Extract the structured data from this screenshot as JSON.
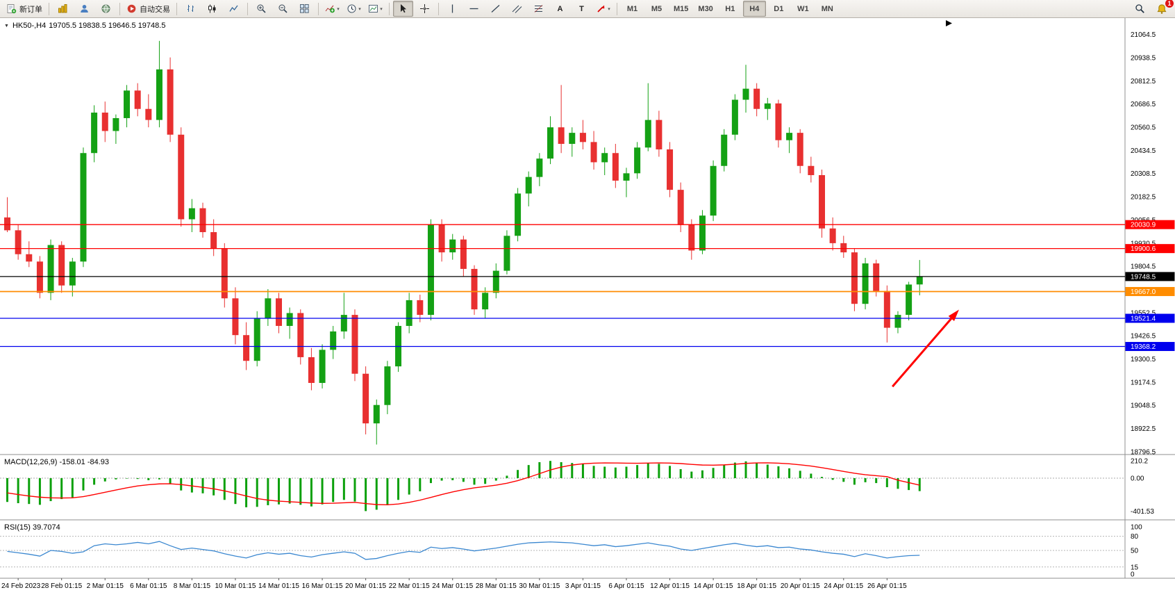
{
  "toolbar": {
    "new_order_label": "新订单",
    "auto_trading_label": "自动交易",
    "text_tool": "A",
    "textlabel_tool": "T",
    "timeframes": [
      "M1",
      "M5",
      "M15",
      "M30",
      "H1",
      "H4",
      "D1",
      "W1",
      "MN"
    ],
    "active_timeframe": "H4",
    "notification_count": "1"
  },
  "chart": {
    "symbol_period": "HK50-,H4",
    "ohlc_text": "19705.5 19838.5 19646.5 19748.5"
  },
  "chart_data": {
    "type": "candlestick",
    "symbol": "HK50-",
    "timeframe": "H4",
    "ohlc_current": {
      "open": 19705.5,
      "high": 19838.5,
      "low": 19646.5,
      "close": 19748.5
    },
    "colors": {
      "up": "#14a114",
      "down": "#e83030",
      "background": "#ffffff"
    },
    "price_axis_labels": [
      "21064.5",
      "20938.5",
      "20812.5",
      "20686.5",
      "20560.5",
      "20434.5",
      "20308.5",
      "20182.5",
      "20056.5",
      "19930.5",
      "19804.5",
      "19678.5",
      "19552.5",
      "19426.5",
      "19300.5",
      "19174.5",
      "19048.5",
      "18922.5",
      "18796.5"
    ],
    "time_axis_labels": [
      "24 Feb 2023",
      "28 Feb 01:15",
      "2 Mar 01:15",
      "6 Mar 01:15",
      "8 Mar 01:15",
      "10 Mar 01:15",
      "14 Mar 01:15",
      "16 Mar 01:15",
      "20 Mar 01:15",
      "22 Mar 01:15",
      "24 Mar 01:15",
      "28 Mar 01:15",
      "30 Mar 01:15",
      "3 Apr 01:15",
      "6 Apr 01:15",
      "12 Apr 01:15",
      "14 Apr 01:15",
      "18 Apr 01:15",
      "20 Apr 01:15",
      "24 Apr 01:15",
      "26 Apr 01:15"
    ],
    "horizontal_lines": [
      {
        "price": 20030.9,
        "label": "20030.9",
        "color": "#ff0000"
      },
      {
        "price": 19900.6,
        "label": "19900.6",
        "color": "#ff0000"
      },
      {
        "price": 19748.5,
        "label": "19748.5",
        "color": "#000000"
      },
      {
        "price": 19667.0,
        "label": "19667.0",
        "color": "#ff8c00"
      },
      {
        "price": 19521.4,
        "label": "19521.4",
        "color": "#0000ee"
      },
      {
        "price": 19368.2,
        "label": "19368.2",
        "color": "#0000ee"
      }
    ],
    "arrow_annotation": {
      "color": "#ff0000",
      "from": {
        "bar": 81.5,
        "price": 19150
      },
      "to": {
        "bar": 87.5,
        "price": 19560
      }
    },
    "candles": [
      [
        20070,
        20180,
        19990,
        20000
      ],
      [
        20000,
        20030,
        19840,
        19870
      ],
      [
        19870,
        19940,
        19800,
        19830
      ],
      [
        19830,
        19860,
        19630,
        19660
      ],
      [
        19660,
        19950,
        19620,
        19920
      ],
      [
        19920,
        19940,
        19660,
        19700
      ],
      [
        19700,
        19850,
        19640,
        19830
      ],
      [
        19830,
        20450,
        19800,
        20420
      ],
      [
        20420,
        20680,
        20370,
        20640
      ],
      [
        20640,
        20700,
        20480,
        20540
      ],
      [
        20540,
        20630,
        20470,
        20610
      ],
      [
        20610,
        20790,
        20560,
        20760
      ],
      [
        20760,
        20800,
        20620,
        20660
      ],
      [
        20660,
        20740,
        20560,
        20600
      ],
      [
        20600,
        21030,
        20560,
        20875
      ],
      [
        20875,
        20940,
        20480,
        20520
      ],
      [
        20520,
        20560,
        20020,
        20060
      ],
      [
        20060,
        20170,
        19990,
        20120
      ],
      [
        20120,
        20150,
        19960,
        19990
      ],
      [
        19990,
        20060,
        19860,
        19900
      ],
      [
        19900,
        19930,
        19580,
        19630
      ],
      [
        19630,
        19690,
        19380,
        19430
      ],
      [
        19430,
        19500,
        19240,
        19290
      ],
      [
        19290,
        19560,
        19260,
        19520
      ],
      [
        19520,
        19680,
        19480,
        19630
      ],
      [
        19630,
        19660,
        19440,
        19480
      ],
      [
        19480,
        19580,
        19410,
        19550
      ],
      [
        19550,
        19570,
        19270,
        19310
      ],
      [
        19310,
        19360,
        19130,
        19170
      ],
      [
        19170,
        19380,
        19140,
        19350
      ],
      [
        19350,
        19480,
        19300,
        19450
      ],
      [
        19450,
        19660,
        19410,
        19540
      ],
      [
        19540,
        19570,
        19180,
        19220
      ],
      [
        19220,
        19260,
        18890,
        18950
      ],
      [
        18950,
        19080,
        18835,
        19050
      ],
      [
        19050,
        19290,
        19000,
        19260
      ],
      [
        19260,
        19500,
        19230,
        19480
      ],
      [
        19480,
        19660,
        19440,
        19620
      ],
      [
        19620,
        19650,
        19500,
        19540
      ],
      [
        19540,
        20060,
        19510,
        20030
      ],
      [
        20030,
        20060,
        19830,
        19880
      ],
      [
        19880,
        19980,
        19840,
        19950
      ],
      [
        19950,
        19970,
        19750,
        19790
      ],
      [
        19790,
        19810,
        19540,
        19570
      ],
      [
        19570,
        19690,
        19520,
        19660
      ],
      [
        19660,
        19820,
        19630,
        19780
      ],
      [
        19780,
        20000,
        19760,
        19970
      ],
      [
        19970,
        20230,
        19940,
        20200
      ],
      [
        20200,
        20320,
        20130,
        20290
      ],
      [
        20290,
        20420,
        20240,
        20390
      ],
      [
        20390,
        20620,
        20360,
        20560
      ],
      [
        20560,
        20790,
        20420,
        20470
      ],
      [
        20470,
        20560,
        20400,
        20530
      ],
      [
        20530,
        20600,
        20440,
        20480
      ],
      [
        20480,
        20540,
        20330,
        20370
      ],
      [
        20370,
        20450,
        20300,
        20420
      ],
      [
        20420,
        20470,
        20230,
        20270
      ],
      [
        20270,
        20340,
        20180,
        20310
      ],
      [
        20310,
        20480,
        20280,
        20450
      ],
      [
        20450,
        20800,
        20430,
        20600
      ],
      [
        20600,
        20650,
        20400,
        20440
      ],
      [
        20440,
        20480,
        20180,
        20220
      ],
      [
        20220,
        20260,
        19990,
        20030
      ],
      [
        20030,
        20060,
        19840,
        19890
      ],
      [
        19890,
        20110,
        19870,
        20080
      ],
      [
        20080,
        20380,
        20050,
        20350
      ],
      [
        20350,
        20550,
        20320,
        20520
      ],
      [
        20520,
        20740,
        20490,
        20710
      ],
      [
        20710,
        20900,
        20640,
        20770
      ],
      [
        20770,
        20800,
        20620,
        20660
      ],
      [
        20660,
        20720,
        20600,
        20690
      ],
      [
        20690,
        20710,
        20450,
        20490
      ],
      [
        20490,
        20560,
        20420,
        20530
      ],
      [
        20530,
        20550,
        20310,
        20350
      ],
      [
        20350,
        20400,
        20260,
        20300
      ],
      [
        20300,
        20330,
        19960,
        20010
      ],
      [
        20010,
        20070,
        19890,
        19930
      ],
      [
        19930,
        19970,
        19850,
        19880
      ],
      [
        19880,
        19900,
        19560,
        19600
      ],
      [
        19600,
        19850,
        19570,
        19820
      ],
      [
        19820,
        19840,
        19640,
        19670
      ],
      [
        19670,
        19700,
        19390,
        19470
      ],
      [
        19470,
        19560,
        19440,
        19540
      ],
      [
        19540,
        19720,
        19510,
        19705
      ],
      [
        19705.5,
        19838.5,
        19646.5,
        19748.5
      ]
    ],
    "macd": {
      "label": "MACD(12,26,9)",
      "current_values": "-158.01 -84.93",
      "axis_labels": [
        "210.2",
        "0.00",
        "-401.53"
      ],
      "histogram_color": "#0ba00b",
      "signal_color": "#ff0000",
      "histogram": [
        -290,
        -305,
        -315,
        -325,
        -280,
        -255,
        -235,
        -150,
        -80,
        -40,
        -15,
        -5,
        -10,
        -25,
        -15,
        -70,
        -150,
        -175,
        -185,
        -210,
        -265,
        -315,
        -355,
        -350,
        -330,
        -320,
        -310,
        -325,
        -345,
        -320,
        -290,
        -265,
        -285,
        -401.53,
        -385,
        -330,
        -265,
        -200,
        -160,
        -60,
        -30,
        -25,
        -45,
        -80,
        -70,
        -30,
        30,
        100,
        160,
        195,
        210.2,
        195,
        185,
        175,
        150,
        140,
        130,
        140,
        160,
        185,
        175,
        150,
        110,
        80,
        95,
        125,
        160,
        190,
        205,
        185,
        165,
        145,
        120,
        90,
        55,
        15,
        -20,
        -45,
        -80,
        -50,
        -60,
        -110,
        -130,
        -145,
        -158.01
      ],
      "signal": [
        -180,
        -200,
        -218,
        -232,
        -240,
        -242,
        -240,
        -225,
        -200,
        -172,
        -145,
        -118,
        -95,
        -80,
        -70,
        -68,
        -78,
        -95,
        -112,
        -130,
        -155,
        -185,
        -218,
        -248,
        -268,
        -280,
        -288,
        -295,
        -303,
        -308,
        -306,
        -300,
        -295,
        -310,
        -322,
        -325,
        -315,
        -295,
        -268,
        -235,
        -200,
        -168,
        -140,
        -118,
        -102,
        -85,
        -62,
        -30,
        10,
        55,
        100,
        135,
        160,
        175,
        183,
        186,
        185,
        183,
        182,
        184,
        186,
        184,
        178,
        168,
        160,
        158,
        162,
        170,
        180,
        186,
        187,
        183,
        175,
        163,
        148,
        128,
        105,
        82,
        60,
        42,
        30,
        18,
        -25,
        -55,
        -84.93
      ]
    },
    "rsi": {
      "label": "RSI(15)",
      "current_value": "39.7074",
      "axis_labels": [
        "100",
        "80",
        "50",
        "15",
        "0"
      ],
      "levels": [
        80,
        50,
        15
      ],
      "line_color": "#3a87d0",
      "values": [
        48,
        45,
        42,
        38,
        50,
        48,
        44,
        47,
        60,
        64,
        62,
        64,
        67,
        64,
        69,
        60,
        52,
        55,
        52,
        49,
        43,
        38,
        34,
        41,
        45,
        42,
        44,
        39,
        36,
        41,
        44,
        47,
        44,
        31,
        33,
        39,
        44,
        48,
        46,
        57,
        54,
        56,
        53,
        49,
        52,
        55,
        59,
        63,
        66,
        67,
        68,
        67,
        66,
        63,
        60,
        62,
        58,
        60,
        63,
        66,
        62,
        59,
        53,
        50,
        54,
        58,
        62,
        65,
        61,
        58,
        60,
        56,
        57,
        53,
        51,
        47,
        44,
        42,
        37,
        43,
        39,
        34,
        37,
        39,
        39.7
      ]
    }
  }
}
